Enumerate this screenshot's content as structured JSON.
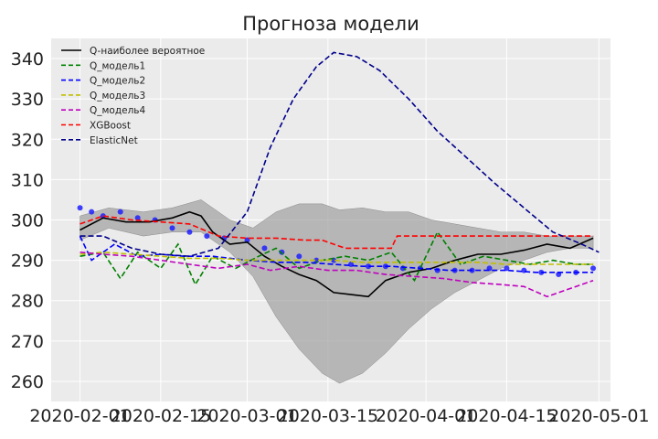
{
  "chart_data": {
    "type": "line",
    "title": "Прогноза модели",
    "xlabel": "",
    "ylabel": "",
    "x_axis_kind": "date",
    "xlim": [
      "2020-01-27",
      "2020-05-03"
    ],
    "ylim": [
      255,
      345
    ],
    "x_ticks": [
      "2020-02-01",
      "2020-02-15",
      "2020-03-01",
      "2020-03-15",
      "2020-04-01",
      "2020-04-15",
      "2020-05-01"
    ],
    "y_ticks": [
      260,
      270,
      280,
      290,
      300,
      310,
      320,
      330,
      340
    ],
    "grid": true,
    "legend_position": "top-left",
    "legend": [
      {
        "name": "Q-наиболее вероятное",
        "color": "#000000",
        "dash": "solid"
      },
      {
        "name": "Q_модель1",
        "color": "#008000",
        "dash": "dashed"
      },
      {
        "name": "Q_модель2",
        "color": "#0000ff",
        "dash": "dashed"
      },
      {
        "name": "Q_модель3",
        "color": "#bfbf00",
        "dash": "dashed"
      },
      {
        "name": "Q_модель4",
        "color": "#bf00bf",
        "dash": "dashed"
      },
      {
        "name": "XGBoost",
        "color": "#ff0000",
        "dash": "dashed"
      },
      {
        "name": "ElasticNet",
        "color": "#00008b",
        "dash": "dashed"
      }
    ],
    "series": [
      {
        "name": "Q-наиболее вероятное",
        "color": "#000000",
        "dash": "solid",
        "x": [
          "2020-02-01",
          "2020-02-05",
          "2020-02-09",
          "2020-02-13",
          "2020-02-17",
          "2020-02-20",
          "2020-02-22",
          "2020-02-24",
          "2020-02-27",
          "2020-03-01",
          "2020-03-04",
          "2020-03-07",
          "2020-03-10",
          "2020-03-13",
          "2020-03-16",
          "2020-03-19",
          "2020-03-22",
          "2020-03-25",
          "2020-03-29",
          "2020-04-02",
          "2020-04-06",
          "2020-04-10",
          "2020-04-14",
          "2020-04-18",
          "2020-04-22",
          "2020-04-26",
          "2020-04-30"
        ],
        "y": [
          297.5,
          300.5,
          299.5,
          299.5,
          300.5,
          302,
          301,
          297,
          294,
          294.5,
          291,
          288.5,
          286.5,
          285,
          282,
          281.5,
          281,
          285,
          287,
          288,
          290,
          291.5,
          291.5,
          292.5,
          294,
          293,
          295.5
        ]
      },
      {
        "name": "Q_модель1",
        "color": "#008000",
        "dash": "dashed",
        "x": [
          "2020-02-01",
          "2020-02-05",
          "2020-02-08",
          "2020-02-11",
          "2020-02-15",
          "2020-02-18",
          "2020-02-21",
          "2020-02-24",
          "2020-02-28",
          "2020-03-03",
          "2020-03-06",
          "2020-03-10",
          "2020-03-14",
          "2020-03-18",
          "2020-03-22",
          "2020-03-26",
          "2020-03-30",
          "2020-04-03",
          "2020-04-07",
          "2020-04-11",
          "2020-04-15",
          "2020-04-19",
          "2020-04-23",
          "2020-04-27",
          "2020-04-30"
        ],
        "y": [
          291,
          292,
          285.5,
          292,
          288,
          294,
          284,
          291,
          288,
          291,
          293,
          288,
          290,
          291,
          290,
          292,
          285,
          297,
          289,
          291,
          290,
          289,
          290,
          289,
          289
        ]
      },
      {
        "name": "Q_модель2",
        "color": "#0000ff",
        "dash": "dashed",
        "x": [
          "2020-02-01",
          "2020-02-03",
          "2020-02-07",
          "2020-02-11",
          "2020-02-15",
          "2020-02-19",
          "2020-02-24",
          "2020-03-01",
          "2020-03-06",
          "2020-03-11",
          "2020-03-16",
          "2020-03-21",
          "2020-03-26",
          "2020-03-31",
          "2020-04-05",
          "2020-04-10",
          "2020-04-15",
          "2020-04-20",
          "2020-04-25",
          "2020-04-30"
        ],
        "y": [
          296,
          290,
          294,
          291,
          291.5,
          291,
          291,
          290,
          289.5,
          289.5,
          289,
          288.5,
          288.5,
          288,
          287.5,
          287.5,
          287.5,
          287,
          287,
          287
        ]
      },
      {
        "name": "Q_модель3",
        "color": "#bfbf00",
        "dash": "dashed",
        "x": [
          "2020-02-01",
          "2020-02-05",
          "2020-02-10",
          "2020-02-15",
          "2020-02-20",
          "2020-02-25",
          "2020-03-01",
          "2020-03-06",
          "2020-03-11",
          "2020-03-16",
          "2020-03-21",
          "2020-03-26",
          "2020-03-31",
          "2020-04-05",
          "2020-04-10",
          "2020-04-15",
          "2020-04-20",
          "2020-04-25",
          "2020-04-30"
        ],
        "y": [
          291.5,
          292,
          291.5,
          291,
          290.5,
          290.5,
          290,
          290,
          290,
          290,
          289.5,
          289.5,
          289.5,
          289.5,
          289.5,
          289,
          289,
          289,
          289
        ]
      },
      {
        "name": "Q_модель4",
        "color": "#bf00bf",
        "dash": "dashed",
        "x": [
          "2020-02-01",
          "2020-02-05",
          "2020-02-10",
          "2020-02-15",
          "2020-02-20",
          "2020-02-25",
          "2020-03-01",
          "2020-03-05",
          "2020-03-10",
          "2020-03-15",
          "2020-03-20",
          "2020-03-25",
          "2020-03-30",
          "2020-04-04",
          "2020-04-09",
          "2020-04-14",
          "2020-04-18",
          "2020-04-22",
          "2020-04-26",
          "2020-04-30"
        ],
        "y": [
          292,
          291.5,
          291,
          290,
          289,
          288,
          289,
          287.5,
          288.5,
          287.5,
          287.5,
          286.5,
          286,
          285.5,
          284.5,
          284,
          283.5,
          281,
          283,
          285
        ]
      },
      {
        "name": "XGBoost",
        "color": "#ff0000",
        "dash": "dashed",
        "x": [
          "2020-02-01",
          "2020-02-05",
          "2020-02-10",
          "2020-02-15",
          "2020-02-20",
          "2020-02-25",
          "2020-03-01",
          "2020-03-06",
          "2020-03-11",
          "2020-03-14",
          "2020-03-18",
          "2020-03-22",
          "2020-03-26",
          "2020-03-27",
          "2020-04-01",
          "2020-04-10",
          "2020-04-20",
          "2020-04-30"
        ],
        "y": [
          299,
          301,
          300,
          299.5,
          299,
          296,
          295.5,
          295.5,
          295,
          295,
          293,
          293,
          293,
          296,
          296,
          296,
          296,
          296
        ]
      },
      {
        "name": "ElasticNet",
        "color": "#00008b",
        "dash": "dashed",
        "x": [
          "2020-02-01",
          "2020-02-05",
          "2020-02-10",
          "2020-02-15",
          "2020-02-20",
          "2020-02-25",
          "2020-03-01",
          "2020-03-05",
          "2020-03-09",
          "2020-03-13",
          "2020-03-16",
          "2020-03-20",
          "2020-03-24",
          "2020-03-29",
          "2020-04-03",
          "2020-04-08",
          "2020-04-13",
          "2020-04-18",
          "2020-04-23",
          "2020-04-28",
          "2020-05-01"
        ],
        "y": [
          296,
          296,
          293,
          291.5,
          291,
          293,
          302,
          318,
          330,
          338,
          341.5,
          340.5,
          337,
          330,
          322,
          315.5,
          309,
          303,
          297,
          294,
          292
        ]
      }
    ],
    "band": {
      "x": [
        "2020-02-01",
        "2020-02-06",
        "2020-02-12",
        "2020-02-17",
        "2020-02-22",
        "2020-02-27",
        "2020-03-02",
        "2020-03-06",
        "2020-03-10",
        "2020-03-14",
        "2020-03-17",
        "2020-03-21",
        "2020-03-25",
        "2020-03-29",
        "2020-04-02",
        "2020-04-06",
        "2020-04-10",
        "2020-04-14",
        "2020-04-18",
        "2020-04-22",
        "2020-04-26",
        "2020-04-30"
      ],
      "lower": [
        295,
        298,
        296,
        297,
        297,
        292,
        286,
        276,
        268,
        262,
        259.5,
        262,
        267,
        273,
        278,
        282,
        285,
        288,
        290,
        292,
        293,
        293
      ],
      "upper": [
        301,
        303,
        302,
        303,
        305,
        300,
        298,
        302,
        304,
        304,
        302.5,
        303,
        302,
        302,
        300,
        299,
        298,
        297,
        297,
        296,
        296,
        296
      ]
    },
    "points": {
      "color": "#1f1fff",
      "x": [
        "2020-02-01",
        "2020-02-03",
        "2020-02-05",
        "2020-02-08",
        "2020-02-11",
        "2020-02-14",
        "2020-02-17",
        "2020-02-20",
        "2020-02-23",
        "2020-02-26",
        "2020-03-01",
        "2020-03-04",
        "2020-03-07",
        "2020-03-10",
        "2020-03-13",
        "2020-03-16",
        "2020-03-19",
        "2020-03-22",
        "2020-03-25",
        "2020-03-28",
        "2020-03-31",
        "2020-04-03",
        "2020-04-06",
        "2020-04-09",
        "2020-04-12",
        "2020-04-15",
        "2020-04-18",
        "2020-04-21",
        "2020-04-24",
        "2020-04-27",
        "2020-04-30"
      ],
      "y": [
        303,
        302,
        301,
        302,
        300.5,
        300,
        298,
        297,
        296,
        295.5,
        295,
        293,
        292,
        291,
        290,
        290,
        289,
        288.5,
        288.5,
        288,
        288,
        287.5,
        287.5,
        287.5,
        288,
        288,
        287.5,
        287,
        286.5,
        287,
        288
      ]
    }
  }
}
